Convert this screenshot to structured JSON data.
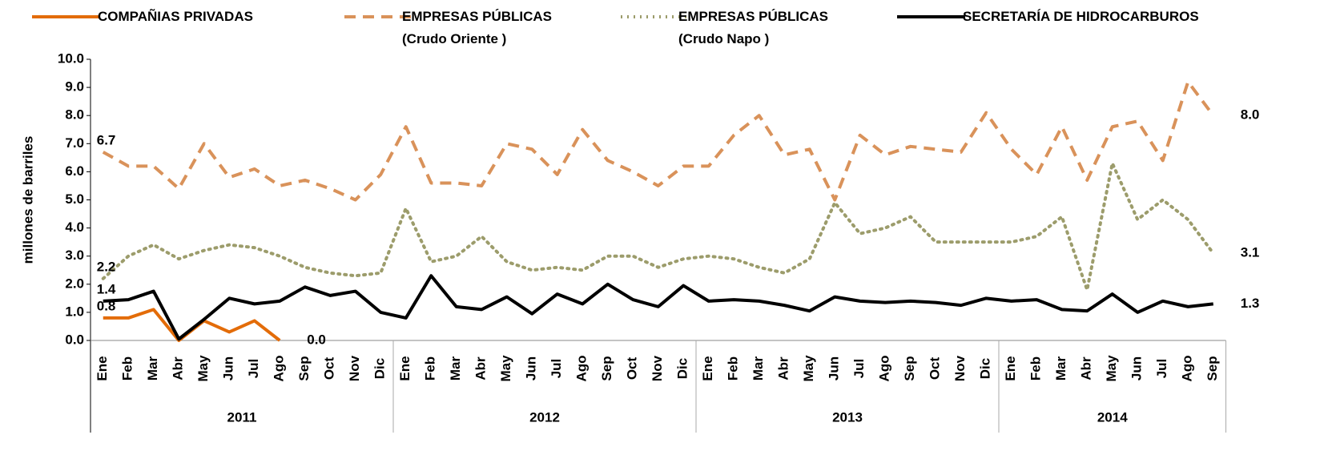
{
  "chart_data": {
    "type": "line",
    "y_label": "millones de barriles",
    "groups": [
      {
        "name": "2011",
        "categories": [
          "Ene",
          "Feb",
          "Mar",
          "Abr",
          "May",
          "Jun",
          "Jul",
          "Ago",
          "Sep",
          "Oct",
          "Nov",
          "Dic"
        ]
      },
      {
        "name": "2012",
        "categories": [
          "Ene",
          "Feb",
          "Mar",
          "Abr",
          "May",
          "Jun",
          "Jul",
          "Ago",
          "Sep",
          "Oct",
          "Nov",
          "Dic"
        ]
      },
      {
        "name": "2013",
        "categories": [
          "Ene",
          "Feb",
          "Mar",
          "Abr",
          "May",
          "Jun",
          "Jul",
          "Ago",
          "Sep",
          "Oct",
          "Nov",
          "Dic"
        ]
      },
      {
        "name": "2014",
        "categories": [
          "Ene",
          "Feb",
          "Mar",
          "Abr",
          "May",
          "Jun",
          "Jul",
          "Ago",
          "Sep"
        ]
      }
    ],
    "ylim": [
      0,
      10
    ],
    "yticks": [
      {
        "value": 0,
        "label": "0.0"
      },
      {
        "value": 1,
        "label": "1.0"
      },
      {
        "value": 2,
        "label": "2.0"
      },
      {
        "value": 3,
        "label": "3.0"
      },
      {
        "value": 4,
        "label": "4.0"
      },
      {
        "value": 5,
        "label": "5.0"
      },
      {
        "value": 6,
        "label": "6.0"
      },
      {
        "value": 7,
        "label": "7.0"
      },
      {
        "value": 8,
        "label": "8.0"
      },
      {
        "value": 9,
        "label": "9.0"
      },
      {
        "value": 10,
        "label": "10.0"
      }
    ],
    "series": [
      {
        "name": "COMPAÑIAS PRIVADAS",
        "color": "#e36c09",
        "style": "solid",
        "values": [
          0.8,
          0.8,
          1.1,
          0,
          0.7,
          0.3,
          0.7,
          0,
          null,
          null,
          null,
          null,
          null,
          null,
          null,
          null,
          null,
          null,
          null,
          null,
          null,
          null,
          null,
          null,
          null,
          null,
          null,
          null,
          null,
          null,
          null,
          null,
          null,
          null,
          null,
          null,
          null,
          null,
          null,
          null,
          null,
          null,
          null,
          null,
          null
        ],
        "value_labels": [
          "0.8",
          null,
          null,
          null,
          null,
          null,
          null,
          "0.0",
          null,
          null,
          null,
          null,
          null,
          null,
          null,
          null,
          null,
          null,
          null,
          null,
          null,
          null,
          null,
          null,
          null,
          null,
          null,
          null,
          null,
          null,
          null,
          null,
          null,
          null,
          null,
          null,
          null,
          null,
          null,
          null,
          null,
          null,
          null,
          null,
          null
        ]
      },
      {
        "name": "EMPRESAS PÚBLICAS\n(Crudo Oriente )",
        "color": "#d9925a",
        "style": "dashed",
        "values": [
          6.7,
          6.2,
          6.2,
          5.4,
          7.0,
          5.8,
          6.1,
          5.5,
          5.7,
          5.4,
          5.0,
          5.9,
          7.6,
          5.6,
          5.6,
          5.5,
          7.0,
          6.8,
          5.9,
          7.5,
          6.4,
          6.0,
          5.5,
          6.2,
          6.2,
          7.3,
          8.0,
          6.6,
          6.8,
          5.0,
          7.3,
          6.6,
          6.9,
          6.8,
          6.7,
          8.1,
          6.8,
          5.9,
          7.6,
          5.7,
          7.6,
          7.8,
          6.4,
          9.2,
          8.0
        ],
        "value_labels": [
          "6.7",
          null,
          null,
          null,
          null,
          null,
          null,
          null,
          null,
          null,
          null,
          null,
          null,
          null,
          null,
          null,
          null,
          null,
          null,
          null,
          null,
          null,
          null,
          null,
          null,
          null,
          null,
          null,
          null,
          null,
          null,
          null,
          null,
          null,
          null,
          null,
          null,
          null,
          null,
          null,
          null,
          null,
          null,
          null,
          "8.0"
        ]
      },
      {
        "name": "EMPRESAS PÚBLICAS\n(Crudo Napo )",
        "color": "#9c9c6b",
        "style": "dotted",
        "values": [
          2.2,
          3.0,
          3.4,
          2.9,
          3.2,
          3.4,
          3.3,
          3.0,
          2.6,
          2.4,
          2.3,
          2.4,
          4.7,
          2.8,
          3.0,
          3.7,
          2.8,
          2.5,
          2.6,
          2.5,
          3.0,
          3.0,
          2.6,
          2.9,
          3.0,
          2.9,
          2.6,
          2.4,
          2.9,
          4.9,
          3.8,
          4.0,
          4.4,
          3.5,
          3.5,
          3.5,
          3.5,
          3.7,
          4.4,
          1.8,
          6.3,
          4.3,
          5.0,
          4.3,
          3.1
        ],
        "value_labels": [
          "2.2",
          null,
          null,
          null,
          null,
          null,
          null,
          null,
          null,
          null,
          null,
          null,
          null,
          null,
          null,
          null,
          null,
          null,
          null,
          null,
          null,
          null,
          null,
          null,
          null,
          null,
          null,
          null,
          null,
          null,
          null,
          null,
          null,
          null,
          null,
          null,
          null,
          null,
          null,
          null,
          null,
          null,
          null,
          null,
          "3.1"
        ]
      },
      {
        "name": "SECRETARÍA DE HIDROCARBUROS",
        "color": "#000000",
        "style": "solid",
        "values": [
          1.4,
          1.45,
          1.75,
          0.05,
          0.75,
          1.5,
          1.3,
          1.4,
          1.9,
          1.6,
          1.75,
          1.0,
          0.8,
          2.3,
          1.2,
          1.1,
          1.55,
          0.95,
          1.65,
          1.3,
          2.0,
          1.45,
          1.2,
          1.95,
          1.4,
          1.45,
          1.4,
          1.25,
          1.05,
          1.55,
          1.4,
          1.35,
          1.4,
          1.35,
          1.25,
          1.5,
          1.4,
          1.45,
          1.1,
          1.05,
          1.65,
          1.0,
          1.4,
          1.2,
          1.3
        ],
        "value_labels": [
          "1.4",
          null,
          null,
          null,
          null,
          null,
          null,
          null,
          null,
          null,
          null,
          null,
          null,
          null,
          null,
          null,
          null,
          null,
          null,
          null,
          null,
          null,
          null,
          null,
          null,
          null,
          null,
          null,
          null,
          null,
          null,
          null,
          null,
          null,
          null,
          null,
          null,
          null,
          null,
          null,
          null,
          null,
          null,
          null,
          "1.3"
        ]
      }
    ]
  }
}
